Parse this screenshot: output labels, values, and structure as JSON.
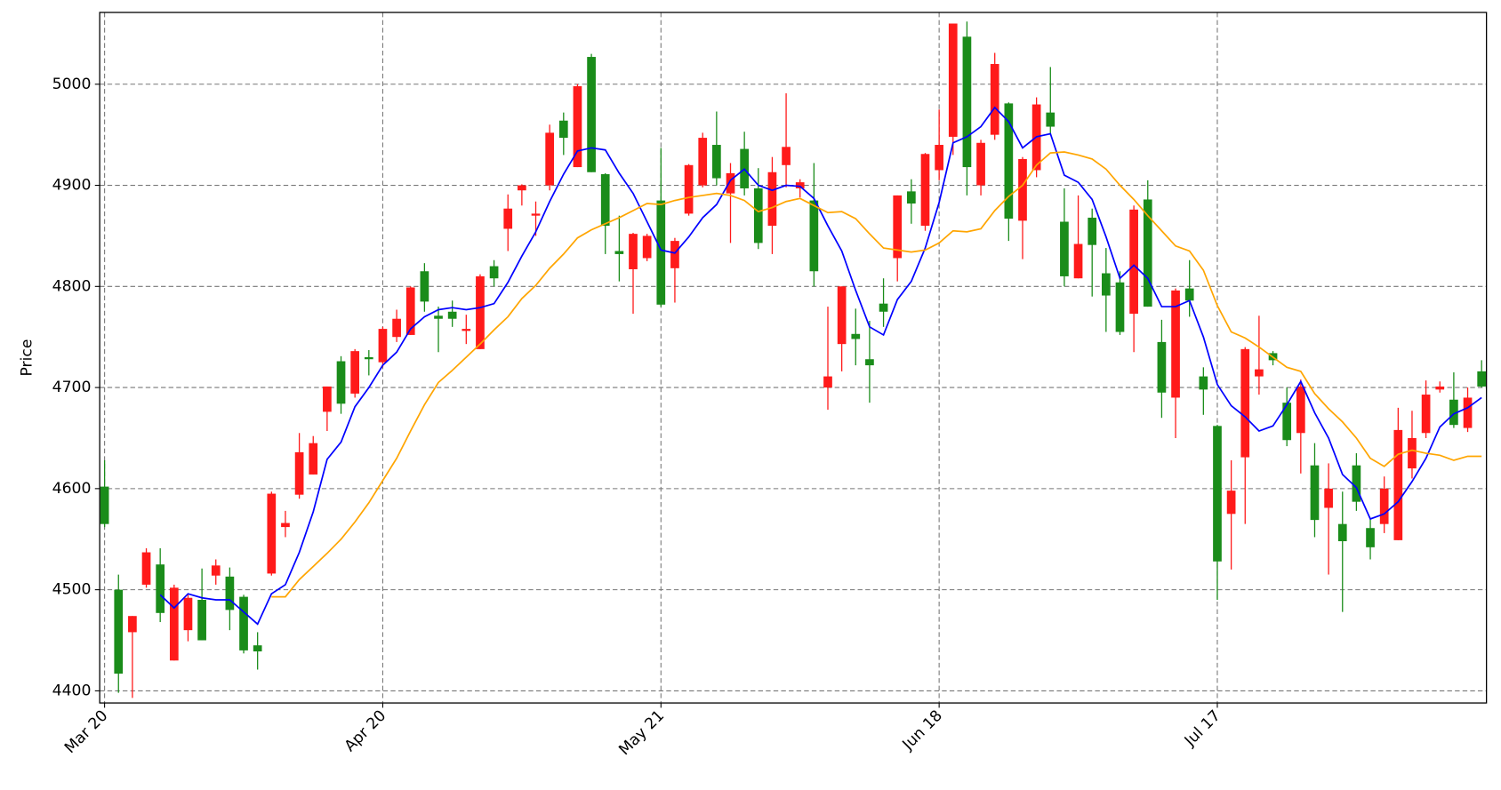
{
  "chart_data": {
    "type": "candlestick",
    "ylabel": "Price",
    "categories": [
      "Mar 20",
      null,
      null,
      null,
      null,
      null,
      null,
      null,
      null,
      null,
      null,
      null,
      null,
      null,
      null,
      null,
      null,
      null,
      null,
      null,
      "Apr 20",
      null,
      null,
      null,
      null,
      null,
      null,
      null,
      null,
      null,
      null,
      null,
      null,
      null,
      null,
      null,
      null,
      null,
      null,
      null,
      "May 21",
      null,
      null,
      null,
      null,
      null,
      null,
      null,
      null,
      null,
      null,
      null,
      null,
      null,
      null,
      null,
      null,
      null,
      null,
      null,
      "Jun 18",
      null,
      null,
      null,
      null,
      null,
      null,
      null,
      null,
      null,
      null,
      null,
      null,
      null,
      null,
      null,
      null,
      null,
      null,
      null,
      "Jul 17",
      null,
      null,
      null,
      null,
      null,
      null,
      null,
      null,
      null,
      null,
      null,
      null,
      null,
      null,
      null,
      null,
      null,
      null,
      null
    ],
    "open": [
      4565,
      4417,
      4474,
      4537,
      4477,
      4502,
      4492,
      4450,
      4524,
      4480,
      4440,
      4439,
      4595,
      4566,
      4636,
      4645,
      4701,
      4684,
      4736,
      4728,
      4758,
      4768,
      4799,
      4785,
      4768,
      4768,
      4758,
      4810,
      4808,
      4877,
      4900,
      4872,
      4952,
      4947,
      4998,
      4913,
      4860,
      4832,
      4852,
      4850,
      4782,
      4845,
      4920,
      4947,
      4907,
      4912,
      4897,
      4843,
      4913,
      4938,
      4903,
      4815,
      4711,
      4800,
      4748,
      4722,
      4775,
      4890,
      4882,
      4931,
      4940,
      5060,
      4918,
      4942,
      5020,
      4867,
      4926,
      4980,
      4958,
      4810,
      4842,
      4841,
      4791,
      4755,
      4876,
      4780,
      4695,
      4796,
      4786,
      4698,
      4528,
      4598,
      4738,
      4718,
      4727,
      4648,
      4701,
      4569,
      4600,
      4548,
      4587,
      4542,
      4600,
      4658,
      4650,
      4693,
      4701,
      4663,
      4690,
      4701
    ],
    "high": [
      4628,
      4515,
      4474,
      4541,
      4541,
      4505,
      4495,
      4521,
      4530,
      4522,
      4495,
      4458,
      4597,
      4578,
      4655,
      4652,
      4701,
      4731,
      4738,
      4737,
      4760,
      4777,
      4800,
      4823,
      4780,
      4786,
      4772,
      4812,
      4826,
      4891,
      4901,
      4884,
      4960,
      4972,
      5000,
      5030,
      4912,
      4870,
      4853,
      4852,
      4937,
      4848,
      4921,
      4952,
      4973,
      4922,
      4953,
      4917,
      4928,
      4991,
      4906,
      4922,
      4780,
      4800,
      4778,
      4766,
      4808,
      4890,
      4906,
      4932,
      4975,
      5060,
      5062,
      4945,
      5031,
      4982,
      4928,
      4987,
      5017,
      4897,
      4890,
      4877,
      4838,
      4815,
      4880,
      4905,
      4767,
      4798,
      4826,
      4720,
      4663,
      4628,
      4740,
      4771,
      4736,
      4700,
      4708,
      4645,
      4625,
      4597,
      4635,
      4571,
      4612,
      4680,
      4677,
      4707,
      4706,
      4715,
      4700,
      4727
    ],
    "low": [
      4562,
      4398,
      4393,
      4502,
      4468,
      4430,
      4449,
      4450,
      4505,
      4460,
      4437,
      4421,
      4514,
      4552,
      4590,
      4614,
      4657,
      4674,
      4690,
      4712,
      4720,
      4745,
      4752,
      4775,
      4735,
      4760,
      4743,
      4738,
      4800,
      4835,
      4880,
      4850,
      4895,
      4930,
      4918,
      4913,
      4832,
      4805,
      4773,
      4825,
      4780,
      4784,
      4870,
      4898,
      4900,
      4843,
      4890,
      4837,
      4832,
      4898,
      4888,
      4800,
      4678,
      4716,
      4722,
      4685,
      4760,
      4805,
      4862,
      4855,
      4905,
      4930,
      4890,
      4890,
      4945,
      4845,
      4827,
      4908,
      4950,
      4800,
      4808,
      4790,
      4755,
      4752,
      4735,
      4780,
      4670,
      4650,
      4770,
      4673,
      4490,
      4520,
      4565,
      4693,
      4722,
      4642,
      4615,
      4552,
      4515,
      4478,
      4578,
      4530,
      4556,
      4549,
      4610,
      4650,
      4695,
      4660,
      4656,
      4700
    ],
    "close": [
      4602,
      4500,
      4458,
      4505,
      4525,
      4430,
      4460,
      4490,
      4514,
      4513,
      4493,
      4445,
      4516,
      4562,
      4594,
      4614,
      4676,
      4726,
      4694,
      4730,
      4725,
      4750,
      4752,
      4815,
      4771,
      4775,
      4756,
      4738,
      4820,
      4857,
      4895,
      4870,
      4900,
      4964,
      4918,
      5027,
      4911,
      4835,
      4817,
      4828,
      4885,
      4818,
      4872,
      4900,
      4940,
      4892,
      4936,
      4897,
      4860,
      4920,
      4897,
      4885,
      4700,
      4743,
      4753,
      4728,
      4783,
      4828,
      4894,
      4860,
      4915,
      4948,
      5047,
      4900,
      4950,
      4981,
      4865,
      4915,
      4972,
      4864,
      4808,
      4868,
      4813,
      4804,
      4773,
      4886,
      4745,
      4690,
      4798,
      4711,
      4662,
      4575,
      4631,
      4711,
      4734,
      4685,
      4655,
      4623,
      4581,
      4565,
      4623,
      4561,
      4565,
      4549,
      4620,
      4655,
      4698,
      4688,
      4660,
      4716
    ],
    "up_color": "#1a8c1a",
    "down_color": "#ff1a1a",
    "lines": [
      {
        "color": "#0000ff",
        "values": [
          null,
          null,
          null,
          null,
          4495,
          4482,
          4496,
          4492,
          4490,
          4490,
          4478,
          4466,
          4496,
          4505,
          4537,
          4577,
          4629,
          4646,
          4681,
          4700,
          4722,
          4735,
          4758,
          4770,
          4777,
          4779,
          4777,
          4779,
          4783,
          4804,
          4830,
          4854,
          4884,
          4911,
          4934,
          4937,
          4935,
          4912,
          4892,
          4864,
          4836,
          4833,
          4849,
          4868,
          4881,
          4905,
          4916,
          4900,
          4895,
          4900,
          4899,
          4887,
          4860,
          4835,
          4796,
          4760,
          4752,
          4787,
          4805,
          4838,
          4883,
          4942,
          4948,
          4958,
          4977,
          4963,
          4937,
          4948,
          4951,
          4910,
          4903,
          4886,
          4849,
          4808,
          4821,
          4808,
          4780,
          4780,
          4786,
          4750,
          4703,
          4682,
          4671,
          4657,
          4662,
          4683,
          4706,
          4675,
          4650,
          4614,
          4601,
          4570,
          4575,
          4587,
          4607,
          4630,
          4661,
          4674,
          4680,
          4690
        ]
      },
      {
        "color": "#ffa500",
        "values": [
          null,
          null,
          null,
          null,
          null,
          null,
          null,
          null,
          null,
          null,
          null,
          null,
          4493,
          4493,
          4510,
          4523,
          4536,
          4550,
          4567,
          4586,
          4608,
          4630,
          4657,
          4683,
          4705,
          4717,
          4730,
          4743,
          4757,
          4770,
          4788,
          4801,
          4818,
          4832,
          4848,
          4856,
          4862,
          4868,
          4875,
          4882,
          4881,
          4885,
          4888,
          4890,
          4892,
          4890,
          4885,
          4874,
          4878,
          4884,
          4887,
          4880,
          4873,
          4874,
          4867,
          4852,
          4838,
          4836,
          4834,
          4836,
          4843,
          4855,
          4854,
          4857,
          4875,
          4889,
          4900,
          4920,
          4932,
          4933,
          4930,
          4926,
          4916,
          4900,
          4886,
          4870,
          4855,
          4840,
          4835,
          4816,
          4781,
          4755,
          4749,
          4740,
          4730,
          4720,
          4716,
          4694,
          4679,
          4666,
          4650,
          4630,
          4622,
          4634,
          4638,
          4635,
          4633,
          4628,
          4632,
          4632
        ]
      }
    ],
    "ylim": [
      4388,
      5071
    ],
    "yticks": [
      4400,
      4500,
      4600,
      4700,
      4800,
      4900,
      5000
    ],
    "grid": true
  }
}
